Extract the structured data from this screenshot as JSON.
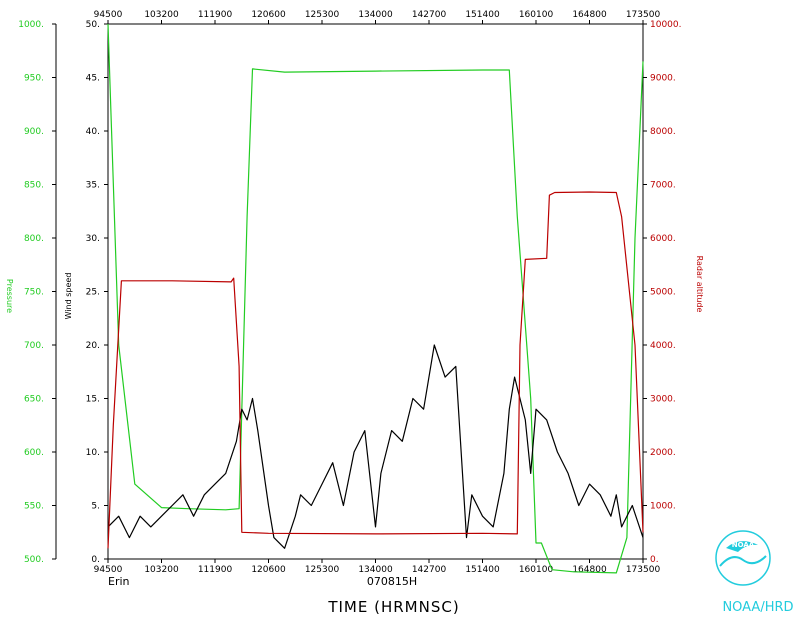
{
  "colors": {
    "background": "#ffffff",
    "axis": "#000000",
    "pressure": "#22cc22",
    "wind": "#000000",
    "altitude": "#bb0000",
    "logo": "#22ccdd"
  },
  "chart_data": {
    "type": "line",
    "storm": "Erin",
    "flight_id": "070815H",
    "xlabel": "TIME (HRMNSC)",
    "ylabel_pressure": "Pressure",
    "ylabel_wind": "Wind speed",
    "ylabel_altitude": "Radar altitude",
    "x_ticks": [
      "94500",
      "103200",
      "111900",
      "120600",
      "125300",
      "134000",
      "142700",
      "151400",
      "160100",
      "164800",
      "173500"
    ],
    "pressure_ticks": [
      "1000.",
      "950.",
      "900.",
      "850.",
      "800.",
      "750.",
      "700.",
      "650.",
      "600.",
      "550.",
      "500."
    ],
    "wind_ticks": [
      "50.",
      "45.",
      "40.",
      "35.",
      "30.",
      "25.",
      "20.",
      "15.",
      "10.",
      "5.",
      "0."
    ],
    "altitude_ticks": [
      "10000.",
      "9000.",
      "8000.",
      "7000.",
      "6000.",
      "5000.",
      "4000.",
      "3000.",
      "2000.",
      "1000.",
      "0."
    ],
    "pressure_range": [
      500,
      1000
    ],
    "wind_range": [
      0,
      50
    ],
    "altitude_range": [
      0,
      10000
    ],
    "grid": false,
    "series": [
      {
        "name": "Pressure",
        "axis": "pressure",
        "x": [
          0.0,
          0.02,
          0.05,
          0.1,
          0.15,
          0.22,
          0.245,
          0.26,
          0.27,
          0.33,
          0.5,
          0.7,
          0.75,
          0.765,
          0.79,
          0.8,
          0.81,
          0.83,
          0.87,
          0.95,
          0.97,
          0.985,
          1.0
        ],
        "y": [
          1000,
          700,
          570,
          548,
          547,
          546,
          547,
          820,
          958,
          955,
          956,
          957,
          957,
          820,
          650,
          515,
          515,
          490,
          488,
          487,
          520,
          800,
          965
        ]
      },
      {
        "name": "Wind speed",
        "axis": "wind",
        "x": [
          0.0,
          0.02,
          0.04,
          0.06,
          0.08,
          0.1,
          0.12,
          0.14,
          0.16,
          0.18,
          0.2,
          0.22,
          0.24,
          0.25,
          0.26,
          0.27,
          0.28,
          0.3,
          0.31,
          0.33,
          0.35,
          0.36,
          0.38,
          0.4,
          0.42,
          0.44,
          0.46,
          0.48,
          0.5,
          0.51,
          0.53,
          0.55,
          0.57,
          0.59,
          0.61,
          0.63,
          0.65,
          0.67,
          0.68,
          0.7,
          0.72,
          0.74,
          0.75,
          0.76,
          0.78,
          0.79,
          0.8,
          0.82,
          0.84,
          0.86,
          0.88,
          0.9,
          0.92,
          0.94,
          0.95,
          0.96,
          0.98,
          1.0
        ],
        "y": [
          3,
          4,
          2,
          4,
          3,
          4,
          5,
          6,
          4,
          6,
          7,
          8,
          11,
          14,
          13,
          15,
          12,
          5,
          2,
          1,
          4,
          6,
          5,
          7,
          9,
          5,
          10,
          12,
          3,
          8,
          12,
          11,
          15,
          14,
          20,
          17,
          18,
          2,
          6,
          4,
          3,
          8,
          14,
          17,
          13,
          8,
          14,
          13,
          10,
          8,
          5,
          7,
          6,
          4,
          6,
          3,
          5,
          2
        ]
      },
      {
        "name": "Radar altitude",
        "axis": "altitude",
        "x": [
          0.0,
          0.01,
          0.025,
          0.05,
          0.12,
          0.23,
          0.235,
          0.245,
          0.25,
          0.3,
          0.5,
          0.7,
          0.765,
          0.77,
          0.78,
          0.82,
          0.825,
          0.835,
          0.9,
          0.95,
          0.96,
          0.985,
          1.0
        ],
        "y": [
          200,
          2500,
          5200,
          5200,
          5200,
          5180,
          5250,
          3600,
          500,
          480,
          470,
          480,
          470,
          4000,
          5600,
          5620,
          6800,
          6850,
          6860,
          6850,
          6400,
          4000,
          500
        ]
      }
    ]
  },
  "logo": {
    "emblem_text": "NOAA",
    "caption": "NOAA/HRD"
  }
}
